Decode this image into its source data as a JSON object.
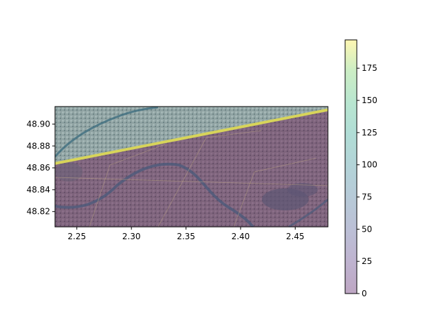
{
  "chart_data": {
    "type": "heatmap",
    "title": "",
    "xlabel": "",
    "ylabel": "",
    "xlim": [
      2.23,
      2.48
    ],
    "ylim": [
      48.806,
      48.916
    ],
    "x_ticks": [
      "2.25",
      "2.30",
      "2.35",
      "2.40",
      "2.45"
    ],
    "x_tick_values": [
      2.25,
      2.3,
      2.35,
      2.4,
      2.45
    ],
    "y_ticks": [
      "48.82",
      "48.84",
      "48.86",
      "48.88",
      "48.90"
    ],
    "y_tick_values": [
      48.82,
      48.84,
      48.86,
      48.88,
      48.9
    ],
    "colorbar": {
      "ticks": [
        "0",
        "25",
        "50",
        "75",
        "100",
        "125",
        "150",
        "175"
      ],
      "tick_values": [
        0,
        25,
        50,
        75,
        100,
        125,
        150,
        175
      ],
      "range": [
        0,
        197
      ],
      "colormap": "viridis",
      "alpha": 0.35
    },
    "overlay": {
      "boundary_line": {
        "x": [
          2.23,
          2.48
        ],
        "y": [
          48.864,
          48.913
        ],
        "value": 197
      },
      "region_below_value": 0,
      "region_above_value": 90
    },
    "grid": false,
    "background": "aerial-imagery"
  }
}
